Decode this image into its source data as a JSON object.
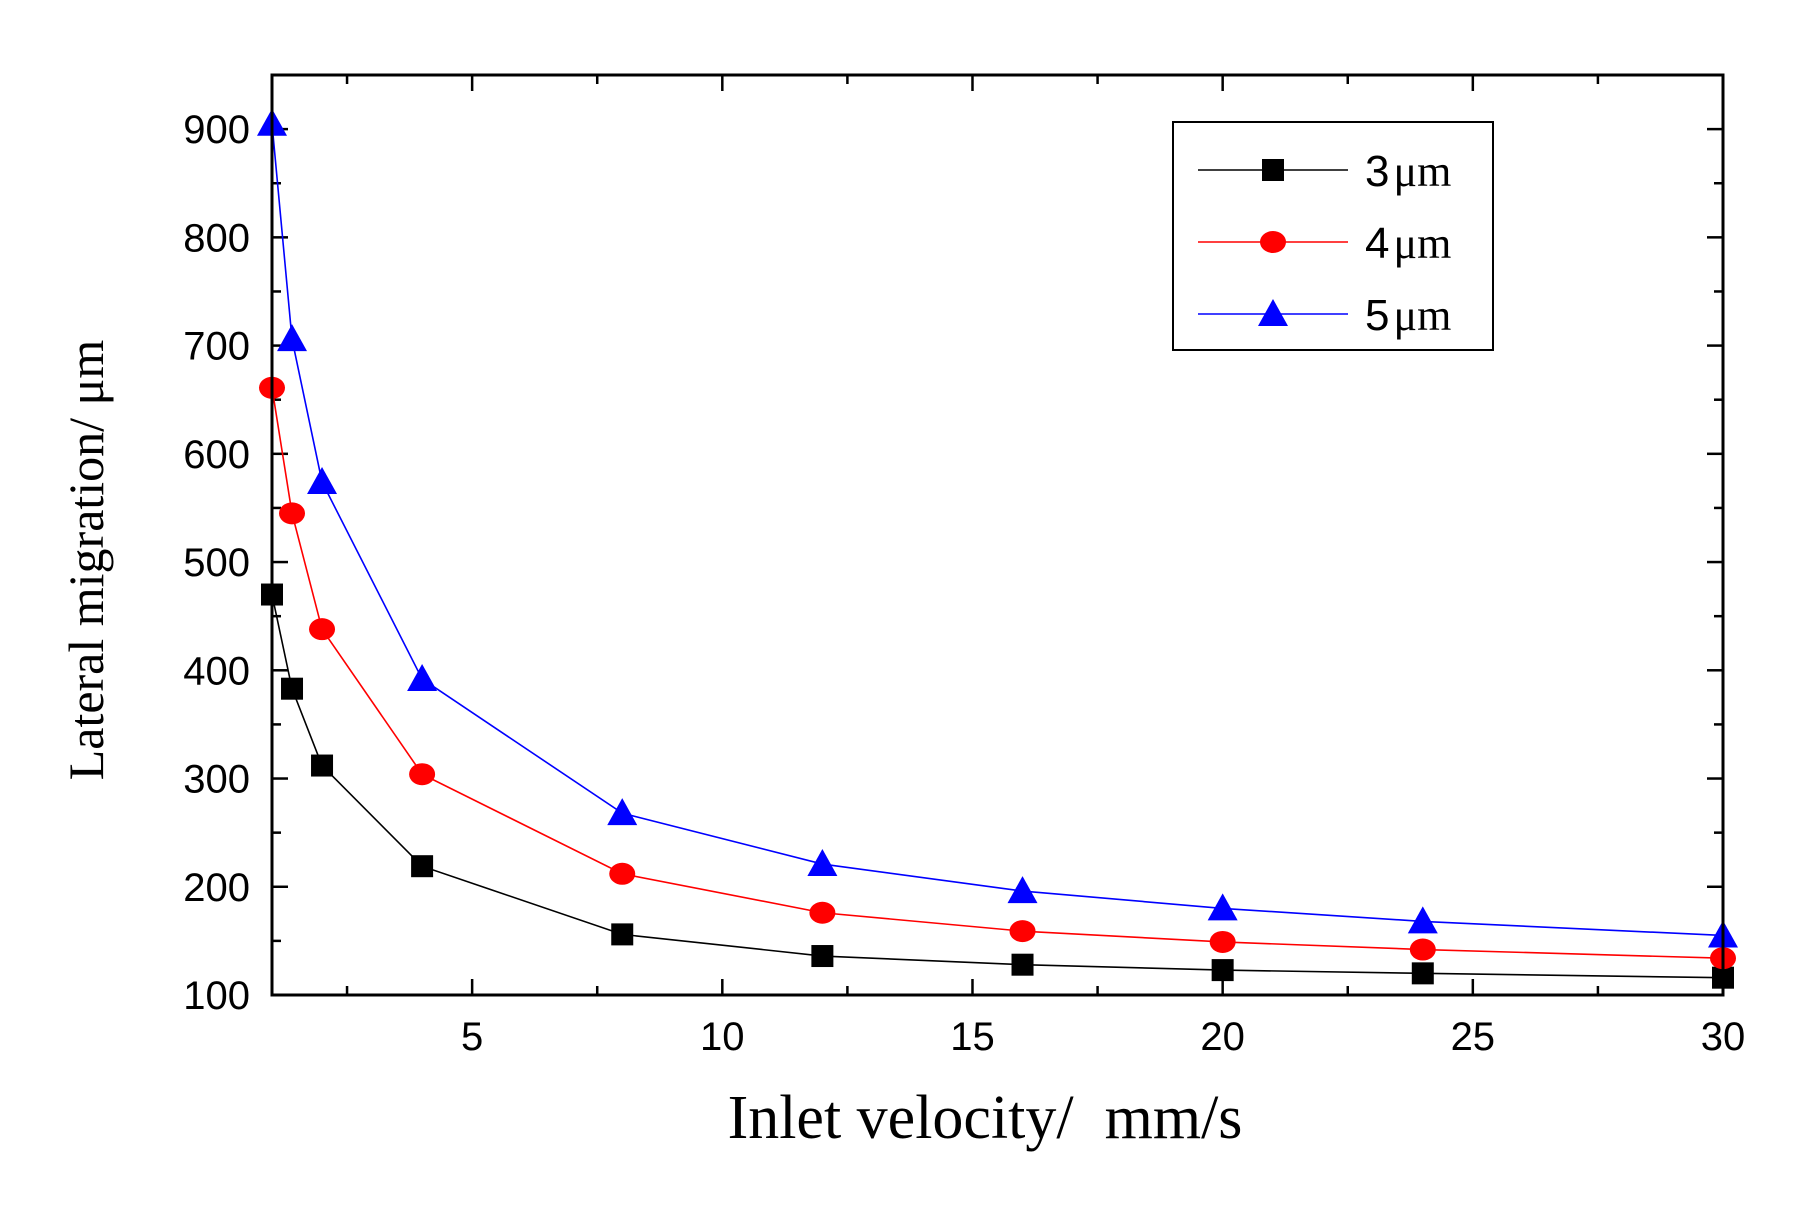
{
  "chart_data": {
    "type": "line",
    "title": "",
    "xlabel": "Inlet velocity/  mm/s",
    "ylabel": "Lateral migration/ μm",
    "xlim": [
      1,
      30
    ],
    "ylim": [
      100,
      950
    ],
    "xticks": [
      5,
      10,
      15,
      20,
      25,
      30
    ],
    "yticks": [
      100,
      200,
      300,
      400,
      500,
      600,
      700,
      800,
      900
    ],
    "x": [
      1,
      1.4,
      2,
      4,
      8,
      12,
      16,
      20,
      24,
      30
    ],
    "series": [
      {
        "name": "3μm",
        "number": "3",
        "unit": "μm",
        "color": "#000000",
        "marker": "square",
        "values": [
          470,
          383,
          312,
          219,
          156,
          136,
          128,
          123,
          120,
          116
        ]
      },
      {
        "name": "4μm",
        "number": "4",
        "unit": "μm",
        "color": "#ff0000",
        "marker": "circle",
        "values": [
          661,
          545,
          438,
          304,
          212,
          176,
          159,
          149,
          142,
          134
        ]
      },
      {
        "name": "5μm",
        "number": "5",
        "unit": "μm",
        "color": "#0000ff",
        "marker": "triangle",
        "values": [
          905,
          706,
          574,
          392,
          268,
          221,
          196,
          180,
          168,
          155
        ]
      }
    ],
    "legend_position": "top-right",
    "grid": false
  }
}
